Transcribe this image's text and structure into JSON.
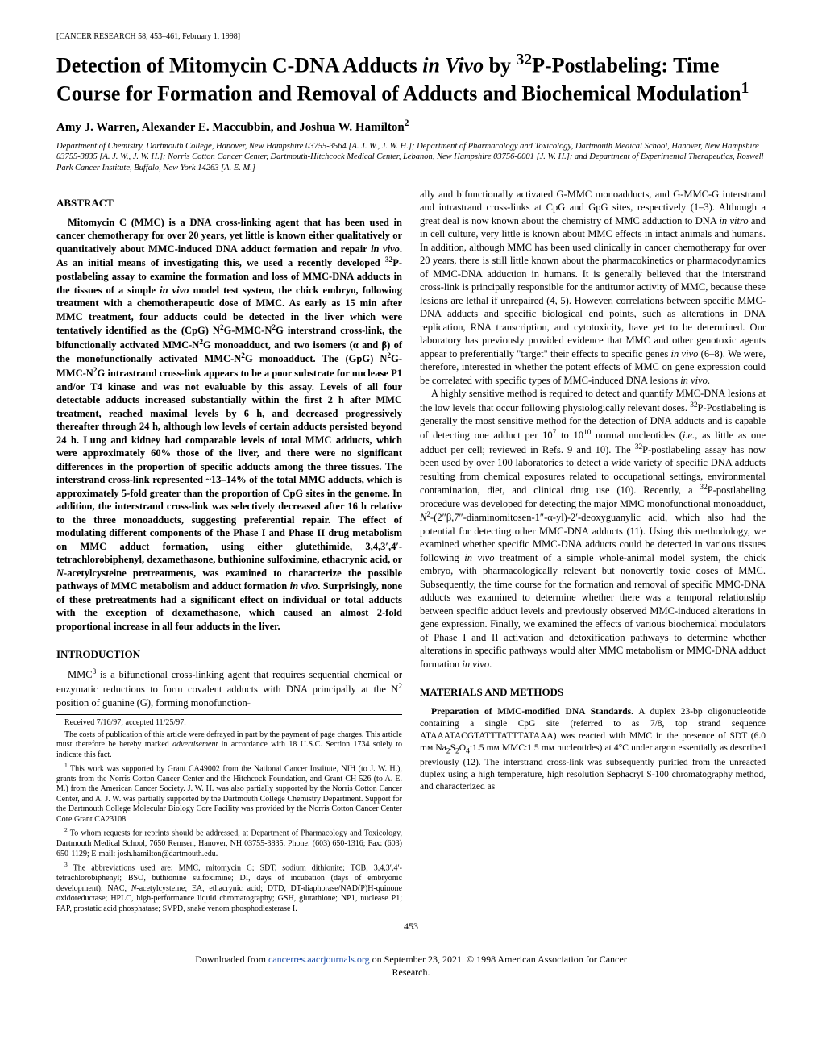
{
  "journal_header": "[CANCER RESEARCH 58, 453–461, February 1, 1998]",
  "title_html": "Detection of Mitomycin C-DNA Adducts <i>in Vivo</i> by <sup>32</sup>P-Postlabeling: Time Course for Formation and Removal of Adducts and Biochemical Modulation<sup>1</sup>",
  "authors_html": "Amy J. Warren, Alexander E. Maccubbin, and Joshua W. Hamilton<sup>2</sup>",
  "affiliations_html": "Department of Chemistry, Dartmouth College, Hanover, New Hampshire 03755-3564 [A. J. W., J. W. H.]; Department of Pharmacology and Toxicology, Dartmouth Medical School, Hanover, New Hampshire 03755-3835 [A. J. W., J. W. H.]; Norris Cotton Cancer Center, Dartmouth-Hitchcock Medical Center, Lebanon, New Hampshire 03756-0001 [J. W. H.]; and Department of Experimental Therapeutics, Roswell Park Cancer Institute, Buffalo, New York 14263 [A. E. M.]",
  "abstract_heading": "ABSTRACT",
  "abstract_html": "Mitomycin C (MMC) is a DNA cross-linking agent that has been used in cancer chemotherapy for over 20 years, yet little is known either qualitatively or quantitatively about MMC-induced DNA adduct formation and repair <i>in vivo</i>. As an initial means of investigating this, we used a recently developed <sup>32</sup>P-postlabeling assay to examine the formation and loss of MMC-DNA adducts in the tissues of a simple <i>in vivo</i> model test system, the chick embryo, following treatment with a chemotherapeutic dose of MMC. As early as 15 min after MMC treatment, four adducts could be detected in the liver which were tentatively identified as the (CpG) N<sup>2</sup>G-MMC-N<sup>2</sup>G interstrand cross-link, the bifunctionally activated MMC-N<sup>2</sup>G monoadduct, and two isomers (α and β) of the monofunctionally activated MMC-N<sup>2</sup>G monoadduct. The (GpG) N<sup>2</sup>G-MMC-N<sup>2</sup>G intrastrand cross-link appears to be a poor substrate for nuclease P1 and/or T4 kinase and was not evaluable by this assay. Levels of all four detectable adducts increased substantially within the first 2 h after MMC treatment, reached maximal levels by 6 h, and decreased progressively thereafter through 24 h, although low levels of certain adducts persisted beyond 24 h. Lung and kidney had comparable levels of total MMC adducts, which were approximately 60% those of the liver, and there were no significant differences in the proportion of specific adducts among the three tissues. The interstrand cross-link represented ~13–14% of the total MMC adducts, which is approximately 5-fold greater than the proportion of CpG sites in the genome. In addition, the interstrand cross-link was selectively decreased after 16 h relative to the three monoadducts, suggesting preferential repair. The effect of modulating different components of the Phase I and Phase II drug metabolism on MMC adduct formation, using either glutethimide, 3,4,3′,4′-tetrachlorobiphenyl, dexamethasone, buthionine sulfoximine, ethacrynic acid, or <i>N</i>-acetylcysteine pretreatments, was examined to characterize the possible pathways of MMC metabolism and adduct formation <i>in vivo</i>. Surprisingly, none of these pretreatments had a significant effect on individual or total adducts with the exception of dexamethasone, which caused an almost 2-fold proportional increase in all four adducts in the liver.",
  "intro_heading": "INTRODUCTION",
  "intro_left_html": "MMC<sup>3</sup> is a bifunctional cross-linking agent that requires sequential chemical or enzymatic reductions to form covalent adducts with DNA principally at the N<sup>2</sup> position of guanine (G), forming monofunction-",
  "footnotes": {
    "received": "Received 7/16/97; accepted 11/25/97.",
    "costs_html": "The costs of publication of this article were defrayed in part by the payment of page charges. This article must therefore be hereby marked <i>advertisement</i> in accordance with 18 U.S.C. Section 1734 solely to indicate this fact.",
    "fn1_html": "<sup>1</sup> This work was supported by Grant CA49002 from the National Cancer Institute, NIH (to J. W. H.), grants from the Norris Cotton Cancer Center and the Hitchcock Foundation, and Grant CH-526 (to A. E. M.) from the American Cancer Society. J. W. H. was also partially supported by the Norris Cotton Cancer Center, and A. J. W. was partially supported by the Dartmouth College Chemistry Department. Support for the Dartmouth College Molecular Biology Core Facility was provided by the Norris Cotton Cancer Center Core Grant CA23108.",
    "fn2_html": "<sup>2</sup> To whom requests for reprints should be addressed, at Department of Pharmacology and Toxicology, Dartmouth Medical School, 7650 Remsen, Hanover, NH 03755-3835. Phone: (603) 650-1316; Fax: (603) 650-1129; E-mail: josh.hamilton@dartmouth.edu.",
    "fn3_html": "<sup>3</sup> The abbreviations used are: MMC, mitomycin C; SDT, sodium dithionite; TCB, 3,4,3′,4′-tetrachlorobiphenyl; BSO, buthionine sulfoximine; DI, days of incubation (days of embryonic development); NAC, <i>N</i>-acetylcysteine; EA, ethacrynic acid; DTD, DT-diaphorase/NAD(P)H-quinone oxidoreductase; HPLC, high-performance liquid chromatography; GSH, glutathione; NP1, nuclease P1; PAP, prostatic acid phosphatase; SVPD, snake venom phosphodiesterase I."
  },
  "right_para1_html": "ally and bifunctionally activated G-MMC monoadducts, and G-MMC-G interstrand and intrastrand cross-links at CpG and GpG sites, respectively (1–3). Although a great deal is now known about the chemistry of MMC adduction to DNA <i>in vitro</i> and in cell culture, very little is known about MMC effects in intact animals and humans. In addition, although MMC has been used clinically in cancer chemotherapy for over 20 years, there is still little known about the pharmacokinetics or pharmacodynamics of MMC-DNA adduction in humans. It is generally believed that the interstrand cross-link is principally responsible for the antitumor activity of MMC, because these lesions are lethal if unrepaired (4, 5). However, correlations between specific MMC-DNA adducts and specific biological end points, such as alterations in DNA replication, RNA transcription, and cytotoxicity, have yet to be determined. Our laboratory has previously provided evidence that MMC and other genotoxic agents appear to preferentially \"target\" their effects to specific genes <i>in vivo</i> (6–8). We were, therefore, interested in whether the potent effects of MMC on gene expression could be correlated with specific types of MMC-induced DNA lesions <i>in vivo</i>.",
  "right_para2_html": "A highly sensitive method is required to detect and quantify MMC-DNA lesions at the low levels that occur following physiologically relevant doses. <sup>32</sup>P-Postlabeling is generally the most sensitive method for the detection of DNA adducts and is capable of detecting one adduct per 10<sup>7</sup> to 10<sup>10</sup> normal nucleotides (<i>i.e.</i>, as little as one adduct per cell; reviewed in Refs. 9 and 10). The <sup>32</sup>P-postlabeling assay has now been used by over 100 laboratories to detect a wide variety of specific DNA adducts resulting from chemical exposures related to occupational settings, environmental contamination, diet, and clinical drug use (10). Recently, a <sup>32</sup>P-postlabeling procedure was developed for detecting the major MMC monofunctional monoadduct, <i>N</i><sup>2</sup>-(2″β,7″-diaminomitosen-1″-α-yl)-2′-deoxyguanylic acid, which also had the potential for detecting other MMC-DNA adducts (11). Using this methodology, we examined whether specific MMC-DNA adducts could be detected in various tissues following <i>in vivo</i> treatment of a simple whole-animal model system, the chick embryo, with pharmacologically relevant but nonovertly toxic doses of MMC. Subsequently, the time course for the formation and removal of specific MMC-DNA adducts was examined to determine whether there was a temporal relationship between specific adduct levels and previously observed MMC-induced alterations in gene expression. Finally, we examined the effects of various biochemical modulators of Phase I and II activation and detoxification pathways to determine whether alterations in specific pathways would alter MMC metabolism or MMC-DNA adduct formation <i>in vivo</i>.",
  "methods_heading": "MATERIALS AND METHODS",
  "methods_para_html": "<span class=\"inline-heading\">Preparation of MMC-modified DNA Standards.</span> A duplex 23-bp oligonucleotide containing a single CpG site (referred to as 7/8, top strand sequence ATAAATACGTATTTATTTATAAA) was reacted with MMC in the presence of SDT (6.0 mᴍ Na<sub>2</sub>S<sub>2</sub>O<sub>4</sub>:1.5 mᴍ MMC:1.5 mᴍ nucleotides) at 4°C under argon essentially as described previously (12). The interstrand cross-link was subsequently purified from the unreacted duplex using a high temperature, high resolution Sephacryl S-100 chromatography method, and characterized as",
  "page_number": "453",
  "download_html": "Downloaded from <a href=\"#\">cancerres.aacrjournals.org</a> on September 23, 2021. © 1998 American Association for Cancer<br>Research."
}
